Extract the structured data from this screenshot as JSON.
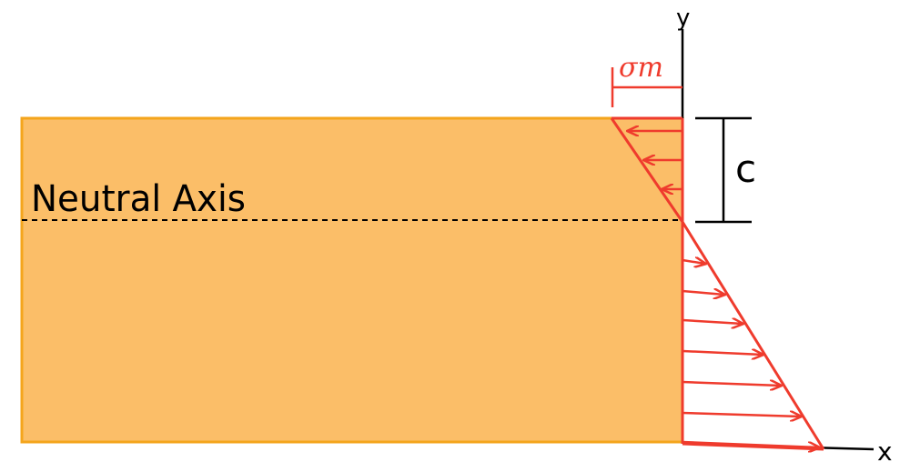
{
  "labels": {
    "neutral_axis": "Neutral Axis",
    "y_axis": "y",
    "x_axis": "x",
    "distance": "c",
    "stress": "σm"
  },
  "colors": {
    "beam_fill": "#fbbe68",
    "beam_stroke": "#f4a51c",
    "stress": "#ef3b2d",
    "ink": "#000000"
  },
  "stress_profile": {
    "shape": "linear",
    "compression_side": "above-neutral-axis",
    "tension_side": "below-neutral-axis"
  }
}
